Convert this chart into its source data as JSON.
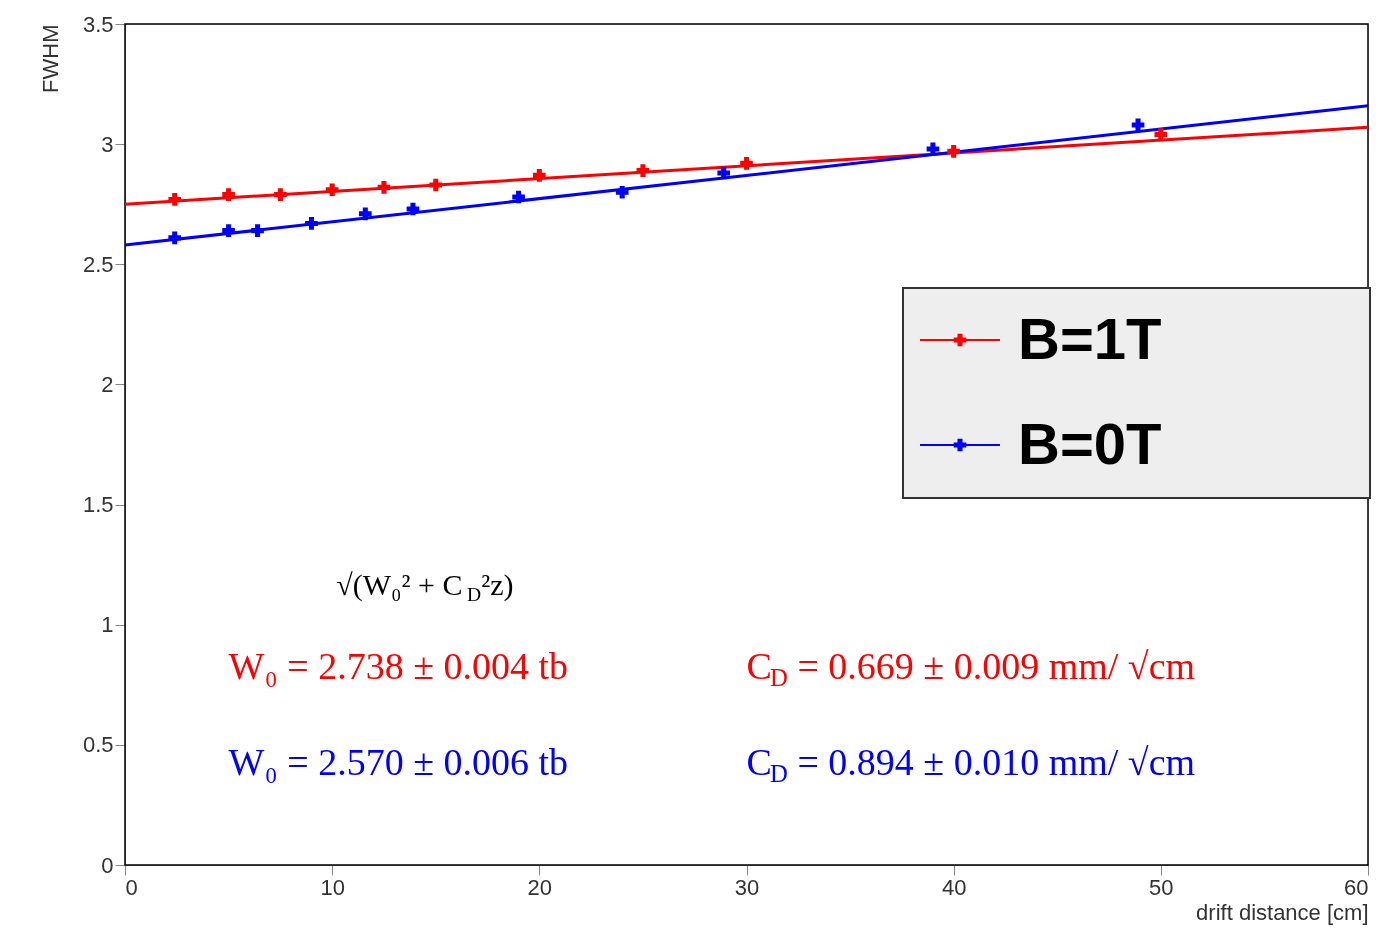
{
  "chart_data": {
    "type": "scatter",
    "xlabel": "drift distance [cm]",
    "ylabel": "FWHM",
    "xlim": [
      0,
      60
    ],
    "xticks": [
      0,
      10,
      20,
      30,
      40,
      50,
      60
    ],
    "ylim": [
      0,
      3.5
    ],
    "yticks": [
      {
        "value": 0,
        "label": "0"
      },
      0.5,
      {
        "value": 1,
        "label": "1"
      },
      1.5,
      {
        "value": 2,
        "label": "2"
      },
      2.5,
      {
        "value": 3,
        "label": "3"
      },
      3.5
    ],
    "grid": false,
    "legend": "right",
    "marker": "cross",
    "series": [
      {
        "name": "B=1T",
        "color": "#ff0000",
        "x": [
          2.4,
          5,
          7.5,
          10,
          12.5,
          15,
          20,
          25,
          30,
          40,
          50
        ],
        "values": [
          2.77,
          2.79,
          2.79,
          2.81,
          2.82,
          2.83,
          2.87,
          2.89,
          2.92,
          2.97,
          3.04
        ]
      },
      {
        "name": "B=0T",
        "color": "#0000ff",
        "x": [
          2.4,
          5,
          6.4,
          9,
          11.6,
          13.9,
          19,
          24,
          28.9,
          39,
          48.9
        ],
        "values": [
          2.61,
          2.64,
          2.64,
          2.67,
          2.71,
          2.73,
          2.78,
          2.8,
          2.88,
          2.98,
          3.08
        ]
      },
      {
        "type": "line",
        "marker": "none",
        "color": "#ff0000",
        "x": [
          0,
          60
        ],
        "values": [
          2.75,
          3.07
        ]
      },
      {
        "type": "line",
        "marker": "none",
        "color": "#0000ff",
        "x": [
          0,
          60
        ],
        "values": [
          2.58,
          3.16
        ]
      }
    ],
    "annotations": [
      "√(W₀² + C$_{D}$²z)",
      "W₀ = 2.738 ± 0.004 tb",
      "C$_{D}$ = 0.669 ± 0.009 mm/ √cm",
      "W₀ = 2.570 ± 0.006 tb",
      "C$_{D}$ = 0.894 ± 0.010 mm/ √cm"
    ]
  }
}
